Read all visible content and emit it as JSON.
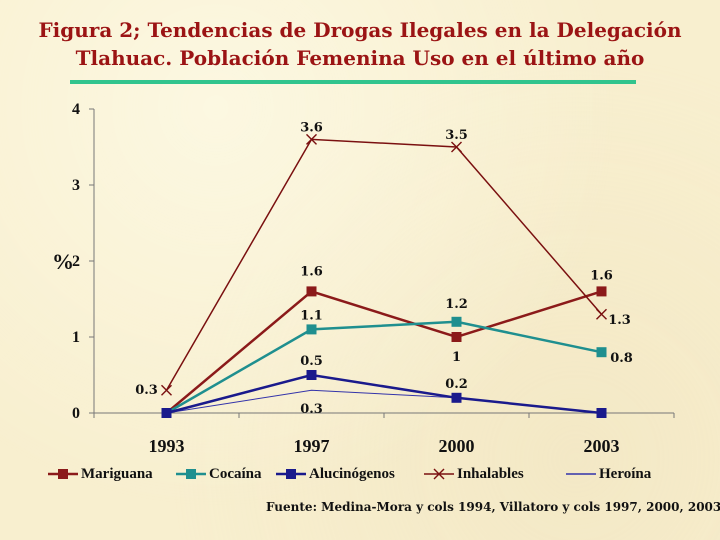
{
  "title": {
    "line1": "Figura 2; Tendencias de Drogas Ilegales en  la Delegación",
    "line2": "Tlahuac. Población Femenina Uso en el último año"
  },
  "colors": {
    "title": "#9b1414",
    "rule": "#31c48d"
  },
  "chart_data": {
    "type": "line",
    "categories": [
      "1993",
      "1997",
      "2000",
      "2003"
    ],
    "ylabel": "%",
    "ylim": [
      0,
      4
    ],
    "yticks": [
      "0",
      "1",
      "2",
      "3",
      "4"
    ],
    "grid": false,
    "legend_position": "bottom",
    "series": [
      {
        "name": "Mariguana",
        "values": [
          0,
          1.6,
          1,
          1.6
        ],
        "labels": [
          "",
          "1.6",
          "1",
          "1.6"
        ],
        "color": "#8b1a1a",
        "marker": "square"
      },
      {
        "name": "Cocaína",
        "values": [
          0,
          1.1,
          1.2,
          0.8
        ],
        "labels": [
          "",
          "1.1",
          "1.2",
          "0.8"
        ],
        "color": "#1f8f8f",
        "marker": "square"
      },
      {
        "name": "Alucinógenos",
        "values": [
          0,
          0.5,
          0.2,
          0
        ],
        "labels": [
          "",
          "0.5",
          "0.2",
          ""
        ],
        "color": "#1a1a8c",
        "marker": "square"
      },
      {
        "name": "Inhalables",
        "values": [
          0.3,
          3.6,
          3.5,
          1.3
        ],
        "labels": [
          "0.3",
          "3.6",
          "3.5",
          "1.3"
        ],
        "color": "#7a1010",
        "marker": "x"
      },
      {
        "name": "Heroína",
        "values": [
          0,
          0.3,
          0.2,
          0
        ],
        "labels": [
          "",
          "0.3",
          "",
          ""
        ],
        "color": "#3333aa",
        "marker": "none"
      }
    ]
  },
  "source": "Fuente: Medina-Mora y cols 1994, Villatoro y cols 1997, 2000, 2003"
}
